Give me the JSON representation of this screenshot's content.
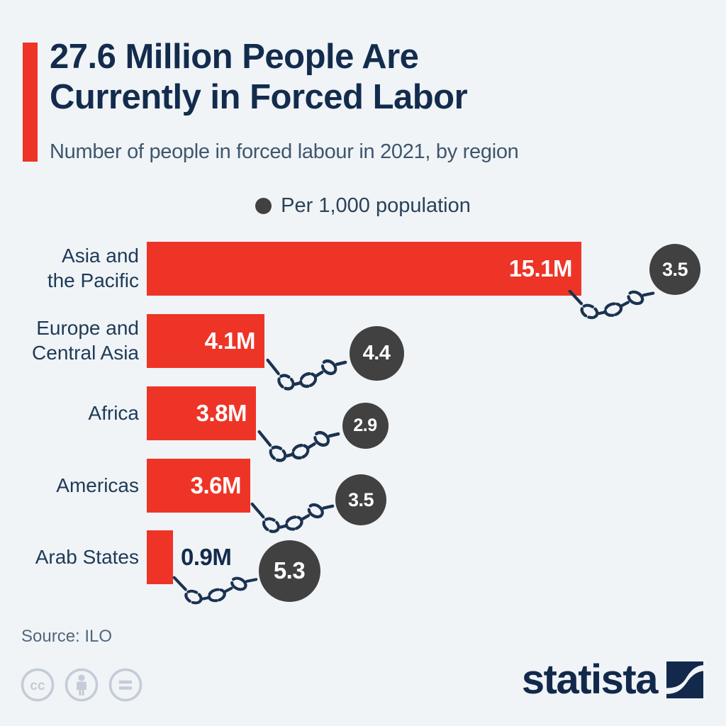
{
  "header": {
    "title_line1": "27.6 Million People Are",
    "title_line2": "Currently in Forced Labor",
    "subtitle": "Number of people in forced labour in 2021, by region"
  },
  "legend": {
    "label": "Per 1,000 population",
    "dot_icon": "legend-dot-icon"
  },
  "footer": {
    "source": "Source: ILO",
    "logo_text": "statista",
    "license_icons": [
      "cc-icon",
      "cc-by-person-icon",
      "cc-nd-equals-icon"
    ]
  },
  "colors": {
    "background": "#f0f4f7",
    "bar_red": "#ee3426",
    "title_navy": "#132c4d",
    "subtitle_slate": "#3f566d",
    "label_navy": "#1e3a57",
    "value_white": "#ffffff",
    "rate_circle_gray": "#414141",
    "chain_navy": "#1b3250",
    "source_gray": "#52677c",
    "license_icon_gray": "#c3ccd7",
    "logo_navy": "#12294b"
  },
  "chart_data": {
    "type": "bar",
    "orientation": "horizontal",
    "title": "27.6 Million People Are Currently in Forced Labor",
    "subtitle": "Number of people in forced labour in 2021, by region",
    "categories": [
      "Asia and the Pacific",
      "Europe and Central Asia",
      "Africa",
      "Americas",
      "Arab States"
    ],
    "category_label_lines": [
      [
        "Asia and",
        "the Pacific"
      ],
      [
        "Europe and",
        "Central Asia"
      ],
      [
        "Africa"
      ],
      [
        "Americas"
      ],
      [
        "Arab States"
      ]
    ],
    "series": [
      {
        "name": "Number of people in forced labour",
        "unit": "millions",
        "values": [
          15.1,
          4.1,
          3.8,
          3.6,
          0.9
        ],
        "data_labels": [
          "15.1M",
          "4.1M",
          "3.8M",
          "3.6M",
          "0.9M"
        ]
      },
      {
        "name": "Per 1,000 population",
        "values": [
          3.5,
          4.4,
          2.9,
          3.5,
          5.3
        ],
        "data_labels": [
          "3.5",
          "4.4",
          "2.9",
          "3.5",
          "5.3"
        ]
      }
    ],
    "xlim": [
      0,
      16.5
    ],
    "grid": false,
    "legend_position": "top-center",
    "source": "ILO"
  }
}
